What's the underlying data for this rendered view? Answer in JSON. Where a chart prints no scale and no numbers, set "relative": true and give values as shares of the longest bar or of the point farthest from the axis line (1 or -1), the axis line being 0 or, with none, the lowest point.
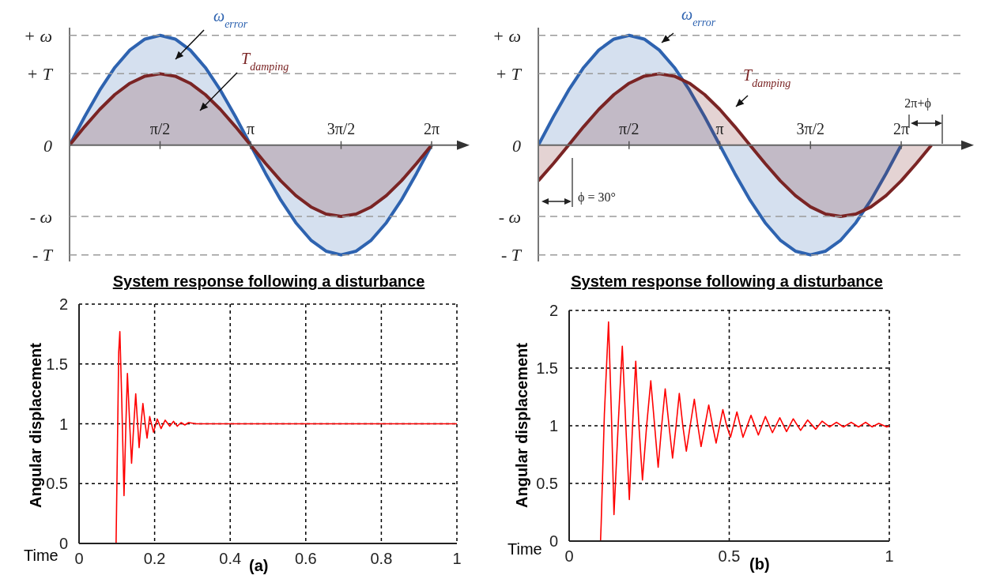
{
  "chart_data": [
    {
      "type": "area",
      "relative": true,
      "xlim": [
        0,
        6.75
      ],
      "xticks": [
        {
          "value": 1.5708,
          "label": "π/2"
        },
        {
          "value": 3.1416,
          "label": "π"
        },
        {
          "value": 4.7124,
          "label": "3π/2"
        },
        {
          "value": 6.2832,
          "label": "2π"
        }
      ],
      "ref_lines": [
        {
          "axis": "y",
          "value": 1,
          "label": "+ ω",
          "color": "#9a9a9a",
          "line_style": "dashed"
        },
        {
          "axis": "y",
          "value": 0.65,
          "label": "+ T",
          "color": "#9a9a9a",
          "line_style": "dashed"
        },
        {
          "axis": "y",
          "value": -0.65,
          "label": "- ω",
          "color": "#9a9a9a",
          "line_style": "dashed"
        },
        {
          "axis": "y",
          "value": -1,
          "label": "- T",
          "color": "#9a9a9a",
          "line_style": "dashed"
        }
      ],
      "annotations": [
        "0"
      ],
      "series": [
        {
          "name": "ω$_{error}$",
          "color": "#2e63b0",
          "x": [
            0,
            0.262,
            0.524,
            0.785,
            1.047,
            1.309,
            1.571,
            1.833,
            2.094,
            2.356,
            2.618,
            2.88,
            3.142,
            3.403,
            3.665,
            3.927,
            4.189,
            4.451,
            4.712,
            4.974,
            5.236,
            5.498,
            5.76,
            6.021,
            6.283
          ],
          "values": [
            0,
            0.259,
            0.5,
            0.707,
            0.866,
            0.966,
            1,
            0.966,
            0.866,
            0.707,
            0.5,
            0.259,
            0,
            -0.259,
            -0.5,
            -0.707,
            -0.866,
            -0.966,
            -1,
            -0.966,
            -0.866,
            -0.707,
            -0.5,
            -0.259,
            0
          ]
        },
        {
          "name": "T$_{damping}$",
          "color": "#7a2424",
          "x": [
            0,
            0.262,
            0.524,
            0.785,
            1.047,
            1.309,
            1.571,
            1.833,
            2.094,
            2.356,
            2.618,
            2.88,
            3.142,
            3.403,
            3.665,
            3.927,
            4.189,
            4.451,
            4.712,
            4.974,
            5.236,
            5.498,
            5.76,
            6.021,
            6.283
          ],
          "values": [
            0,
            0.168,
            0.325,
            0.46,
            0.563,
            0.628,
            0.65,
            0.628,
            0.563,
            0.46,
            0.325,
            0.168,
            0,
            -0.168,
            -0.325,
            -0.46,
            -0.563,
            -0.628,
            -0.65,
            -0.628,
            -0.563,
            -0.46,
            -0.325,
            -0.168,
            0
          ]
        }
      ]
    },
    {
      "type": "area",
      "relative": true,
      "xlim": [
        0,
        7.35
      ],
      "xticks": [
        {
          "value": 1.5708,
          "label": "π/2"
        },
        {
          "value": 3.1416,
          "label": "π"
        },
        {
          "value": 4.7124,
          "label": "3π/2"
        },
        {
          "value": 6.2832,
          "label": "2π"
        }
      ],
      "ref_lines": [
        {
          "axis": "y",
          "value": 1,
          "label": "+ ω",
          "color": "#9a9a9a",
          "line_style": "dashed"
        },
        {
          "axis": "y",
          "value": 0.65,
          "label": "+ T",
          "color": "#9a9a9a",
          "line_style": "dashed"
        },
        {
          "axis": "y",
          "value": -0.65,
          "label": "- ω",
          "color": "#9a9a9a",
          "line_style": "dashed"
        },
        {
          "axis": "y",
          "value": -1,
          "label": "- T",
          "color": "#9a9a9a",
          "line_style": "dashed"
        }
      ],
      "annotations": [
        "0",
        "ϕ = 30°",
        {
          "text": "2π+ϕ",
          "x": 6.807,
          "y": 0
        }
      ],
      "series": [
        {
          "name": "ω$_{error}$",
          "color": "#2e63b0",
          "x": [
            0,
            0.262,
            0.524,
            0.785,
            1.047,
            1.309,
            1.571,
            1.833,
            2.094,
            2.356,
            2.618,
            2.88,
            3.142,
            3.403,
            3.665,
            3.927,
            4.189,
            4.451,
            4.712,
            4.974,
            5.236,
            5.498,
            5.76,
            6.021,
            6.283
          ],
          "values": [
            0,
            0.259,
            0.5,
            0.707,
            0.866,
            0.966,
            1,
            0.966,
            0.866,
            0.707,
            0.5,
            0.259,
            0,
            -0.259,
            -0.5,
            -0.707,
            -0.866,
            -0.966,
            -1,
            -0.966,
            -0.866,
            -0.707,
            -0.5,
            -0.259,
            0
          ]
        },
        {
          "name": "T$_{damping}$",
          "color": "#7a2424",
          "x": [
            0,
            0.262,
            0.524,
            0.785,
            1.047,
            1.309,
            1.571,
            1.833,
            2.094,
            2.356,
            2.618,
            2.88,
            3.142,
            3.403,
            3.665,
            3.927,
            4.189,
            4.451,
            4.712,
            4.974,
            5.236,
            5.498,
            5.76,
            6.021,
            6.283,
            6.545,
            6.807
          ],
          "values": [
            -0.325,
            -0.168,
            0,
            0.168,
            0.325,
            0.46,
            0.563,
            0.628,
            0.65,
            0.628,
            0.563,
            0.46,
            0.325,
            0.168,
            0,
            -0.168,
            -0.325,
            -0.46,
            -0.563,
            -0.628,
            -0.65,
            -0.628,
            -0.563,
            -0.46,
            -0.325,
            -0.168,
            0
          ]
        }
      ]
    },
    {
      "type": "line",
      "title": "System response following a disturbance",
      "xlabel": "Time",
      "ylabel": "Angular displacement",
      "annotations": [
        "(a)"
      ],
      "xlim": [
        0,
        1
      ],
      "xticks": [
        0,
        0.2,
        0.4,
        0.6,
        0.8,
        1
      ],
      "ylim": [
        0,
        2
      ],
      "yticks": [
        0,
        0.5,
        1,
        1.5,
        2
      ],
      "grid": true,
      "series": [
        {
          "color": "#ff0000",
          "x": [
            0,
            0.098,
            0.1,
            0.105,
            0.108,
            0.113,
            0.119,
            0.124,
            0.128,
            0.134,
            0.139,
            0.145,
            0.15,
            0.155,
            0.159,
            0.164,
            0.169,
            0.175,
            0.18,
            0.187,
            0.197,
            0.207,
            0.217,
            0.228,
            0.24,
            0.25,
            0.26,
            0.27,
            0.28,
            0.29,
            0.31,
            1
          ],
          "values": [
            0,
            0,
            0.45,
            1.6,
            1.77,
            1.2,
            0.4,
            1,
            1.42,
            1,
            0.67,
            1,
            1.25,
            1,
            0.8,
            1,
            1.17,
            1,
            0.88,
            1.06,
            0.93,
            1.04,
            0.96,
            1.03,
            0.98,
            1.02,
            0.98,
            1.01,
            0.99,
            1.01,
            1,
            1
          ]
        }
      ]
    },
    {
      "type": "line",
      "title": "System response following a disturbance",
      "xlabel": "Time",
      "ylabel": "Angular displacement",
      "annotations": [
        "(b)"
      ],
      "xlim": [
        0,
        1
      ],
      "xticks": [
        0,
        0.5,
        1
      ],
      "ylim": [
        0,
        2
      ],
      "yticks": [
        0,
        0.5,
        1,
        1.5,
        2
      ],
      "grid": true,
      "series": [
        {
          "color": "#ff0000",
          "x": [
            0,
            0.098,
            0.1,
            0.11,
            0.123,
            0.132,
            0.14,
            0.153,
            0.166,
            0.177,
            0.188,
            0.198,
            0.208,
            0.218,
            0.229,
            0.242,
            0.255,
            0.267,
            0.278,
            0.289,
            0.3,
            0.312,
            0.323,
            0.334,
            0.344,
            0.355,
            0.366,
            0.378,
            0.391,
            0.402,
            0.412,
            0.424,
            0.436,
            0.448,
            0.459,
            0.47,
            0.48,
            0.492,
            0.504,
            0.524,
            0.543,
            0.568,
            0.591,
            0.613,
            0.635,
            0.658,
            0.679,
            0.7,
            0.723,
            0.745,
            0.77,
            0.79,
            0.813,
            0.835,
            0.857,
            0.881,
            0.904,
            0.926,
            0.946,
            0.967,
            0.992,
            1
          ],
          "values": [
            0,
            0,
            0.15,
            1.1,
            1.9,
            1.1,
            0.23,
            1,
            1.69,
            1,
            0.36,
            1,
            1.56,
            1,
            0.53,
            1,
            1.39,
            1,
            0.64,
            1,
            1.32,
            1,
            0.72,
            1,
            1.28,
            1,
            0.78,
            1,
            1.23,
            1,
            0.82,
            1,
            1.18,
            1,
            0.85,
            1,
            1.14,
            1,
            0.9,
            1.12,
            0.9,
            1.09,
            0.92,
            1.08,
            0.94,
            1.07,
            0.95,
            1.06,
            0.96,
            1.05,
            0.97,
            1.04,
            0.99,
            1.03,
            0.99,
            1.03,
            0.99,
            1.03,
            0.99,
            1.02,
            0.99,
            1
          ]
        }
      ]
    }
  ]
}
